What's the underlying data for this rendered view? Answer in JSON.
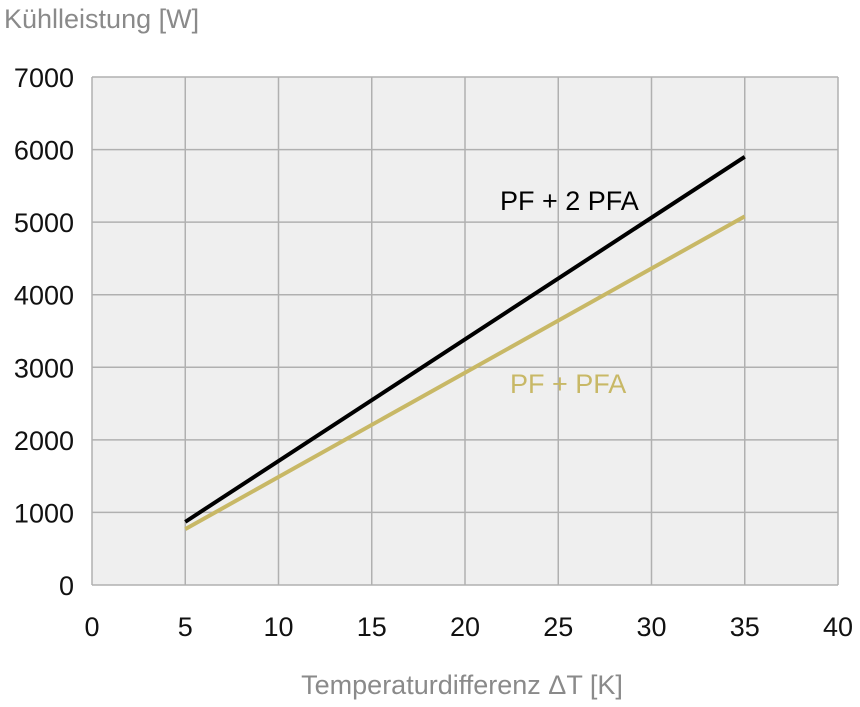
{
  "chart_data": {
    "type": "line",
    "title": "",
    "ylabel": "Kühlleistung [W]",
    "xlabel": "Temperaturdifferenz ΔT [K]",
    "xlim": [
      0,
      40
    ],
    "ylim": [
      0,
      7000
    ],
    "xticks": [
      0,
      5,
      10,
      15,
      20,
      25,
      30,
      35,
      40
    ],
    "yticks": [
      0,
      1000,
      2000,
      3000,
      4000,
      5000,
      6000,
      7000
    ],
    "grid": true,
    "background": "#efefef",
    "series": [
      {
        "name": "PF + 2 PFA",
        "color": "#000000",
        "x": [
          5,
          35
        ],
        "y": [
          870,
          5900
        ]
      },
      {
        "name": "PF + PFA",
        "color": "#c8b866",
        "x": [
          5,
          35
        ],
        "y": [
          770,
          5080
        ]
      }
    ]
  }
}
